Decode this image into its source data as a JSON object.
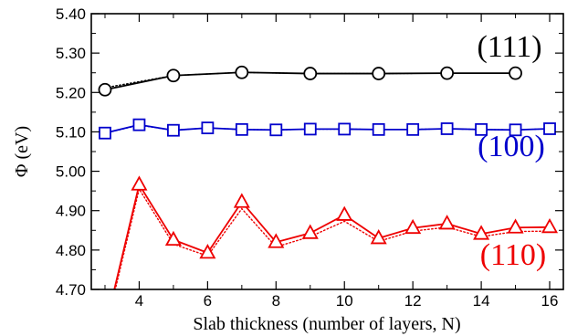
{
  "chart_data": {
    "type": "line",
    "xlabel": "Slab thickness (number of layers, N)",
    "ylabel": "Φ (eV)",
    "xlim": [
      2.6,
      16.4
    ],
    "ylim": [
      4.7,
      5.4
    ],
    "x_ticks": [
      4,
      6,
      8,
      10,
      12,
      14,
      16
    ],
    "y_ticks": [
      4.7,
      4.8,
      4.9,
      5.0,
      5.1,
      5.2,
      5.3,
      5.4
    ],
    "y_tick_labels": [
      "4.70",
      "4.80",
      "4.90",
      "5.00",
      "5.10",
      "5.20",
      "5.30",
      "5.40"
    ],
    "grid": false,
    "series": [
      {
        "name": "(111)",
        "color": "#000000",
        "marker": "circle",
        "x": [
          3,
          5,
          7,
          9,
          11,
          13,
          15
        ],
        "y": [
          5.207,
          5.243,
          5.251,
          5.248,
          5.248,
          5.249,
          5.249
        ],
        "dotted_y": [
          5.212,
          5.243,
          5.251,
          5.248,
          5.248,
          5.249,
          5.249
        ]
      },
      {
        "name": "(100)",
        "color": "#0000cc",
        "marker": "square",
        "x": [
          3,
          4,
          5,
          6,
          7,
          8,
          9,
          10,
          11,
          12,
          13,
          14,
          15,
          16
        ],
        "y": [
          5.097,
          5.118,
          5.104,
          5.11,
          5.106,
          5.105,
          5.107,
          5.107,
          5.106,
          5.106,
          5.108,
          5.106,
          5.105,
          5.108
        ],
        "dotted_y": [
          5.097,
          5.117,
          5.104,
          5.11,
          5.106,
          5.105,
          5.107,
          5.107,
          5.106,
          5.106,
          5.108,
          5.106,
          5.105,
          5.108
        ]
      },
      {
        "name": "(110)",
        "color": "#ee0000",
        "marker": "triangle",
        "x": [
          3,
          4,
          5,
          6,
          7,
          8,
          9,
          10,
          11,
          12,
          13,
          14,
          15,
          16
        ],
        "y": [
          4.6,
          4.966,
          4.826,
          4.793,
          4.922,
          4.82,
          4.843,
          4.889,
          4.83,
          4.856,
          4.867,
          4.841,
          4.857,
          4.858
        ],
        "dotted_y": [
          4.59,
          4.955,
          4.815,
          4.785,
          4.905,
          4.808,
          4.834,
          4.873,
          4.822,
          4.848,
          4.858,
          4.834,
          4.847,
          4.848
        ]
      }
    ]
  }
}
